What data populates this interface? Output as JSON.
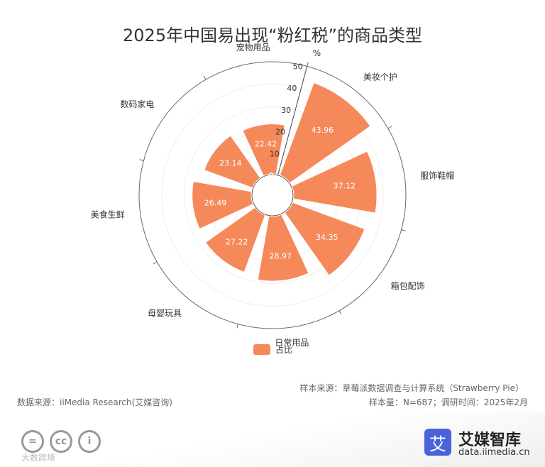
{
  "chart_data": {
    "type": "polar-bar",
    "title": "2025年中国易出现“粉红税”的商品类型",
    "unit": "%",
    "categories": [
      "美妆个护",
      "服饰鞋帽",
      "箱包配饰",
      "日常用品",
      "母婴玩具",
      "美食生鲜",
      "数码家电",
      "宠物用品"
    ],
    "values": [
      43.96,
      37.12,
      34.35,
      28.97,
      27.22,
      26.49,
      23.14,
      22.42
    ],
    "radial_ticks": [
      "0",
      "10",
      "20",
      "30",
      "40",
      "50"
    ],
    "radial_range": [
      0,
      50
    ],
    "series": [
      {
        "name": "占比",
        "color": "#f5895a"
      }
    ],
    "legend_position": "bottom"
  },
  "notes": {
    "sample_source": "样本来源：草莓派数据调查与计算系统（Strawberry Pie）",
    "sample_size": "样本量：N=687；调研时间：2025年2月",
    "data_source": "数据来源：iiMedia Research(艾媒咨询)"
  },
  "footer": {
    "cc_icons": [
      "=",
      "cc",
      "i"
    ],
    "watermark": "大数跨境",
    "logo_mark": "艾",
    "logo_name": "艾媒智库",
    "logo_url": "data.iimedia.cn"
  }
}
